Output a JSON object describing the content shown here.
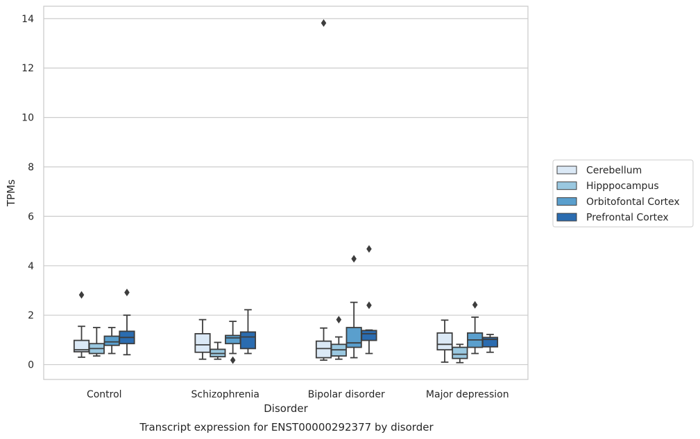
{
  "chart_data": {
    "type": "box",
    "title": "",
    "caption": "Transcript expression for ENST00000292377 by disorder",
    "xlabel": "Disorder",
    "ylabel": "TPMs",
    "ylim": [
      -0.6,
      14.5
    ],
    "yticks": [
      0,
      2,
      4,
      6,
      8,
      10,
      12,
      14
    ],
    "grid": "horizontal",
    "legend_position": "right",
    "categories": [
      "Control",
      "Schizophrenia",
      "Bipolar disorder",
      "Major depression"
    ],
    "series": [
      {
        "name": "Cerebellum",
        "color": "#dbe9f6",
        "boxes": [
          {
            "whisker_low": 0.3,
            "q1": 0.52,
            "median": 0.6,
            "q3": 0.98,
            "whisker_high": 1.55,
            "outliers": [
              2.82
            ]
          },
          {
            "whisker_low": 0.22,
            "q1": 0.5,
            "median": 0.8,
            "q3": 1.25,
            "whisker_high": 1.82,
            "outliers": []
          },
          {
            "whisker_low": 0.18,
            "q1": 0.28,
            "median": 0.65,
            "q3": 0.95,
            "whisker_high": 1.48,
            "outliers": [
              13.82
            ]
          },
          {
            "whisker_low": 0.1,
            "q1": 0.6,
            "median": 0.82,
            "q3": 1.28,
            "whisker_high": 1.8,
            "outliers": []
          }
        ]
      },
      {
        "name": "Hipppocampus",
        "color": "#9ac8e0",
        "boxes": [
          {
            "whisker_low": 0.35,
            "q1": 0.45,
            "median": 0.65,
            "q3": 0.85,
            "whisker_high": 1.5,
            "outliers": []
          },
          {
            "whisker_low": 0.22,
            "q1": 0.32,
            "median": 0.45,
            "q3": 0.62,
            "whisker_high": 0.9,
            "outliers": []
          },
          {
            "whisker_low": 0.22,
            "q1": 0.35,
            "median": 0.6,
            "q3": 0.82,
            "whisker_high": 1.12,
            "outliers": [
              1.82
            ]
          },
          {
            "whisker_low": 0.08,
            "q1": 0.25,
            "median": 0.42,
            "q3": 0.7,
            "whisker_high": 0.82,
            "outliers": []
          }
        ]
      },
      {
        "name": "Orbitofontal Cortex",
        "color": "#5a9fcd",
        "boxes": [
          {
            "whisker_low": 0.45,
            "q1": 0.78,
            "median": 0.92,
            "q3": 1.15,
            "whisker_high": 1.5,
            "outliers": []
          },
          {
            "whisker_low": 0.45,
            "q1": 0.85,
            "median": 1.08,
            "q3": 1.18,
            "whisker_high": 1.75,
            "outliers": [
              0.18
            ]
          },
          {
            "whisker_low": 0.28,
            "q1": 0.7,
            "median": 0.88,
            "q3": 1.5,
            "whisker_high": 2.52,
            "outliers": [
              4.28
            ]
          },
          {
            "whisker_low": 0.45,
            "q1": 0.7,
            "median": 1.0,
            "q3": 1.28,
            "whisker_high": 1.92,
            "outliers": [
              2.42
            ]
          }
        ]
      },
      {
        "name": "Prefrontal Cortex",
        "color": "#2b6cb0",
        "boxes": [
          {
            "whisker_low": 0.4,
            "q1": 0.85,
            "median": 1.1,
            "q3": 1.35,
            "whisker_high": 2.0,
            "outliers": [
              2.92
            ]
          },
          {
            "whisker_low": 0.45,
            "q1": 0.65,
            "median": 1.12,
            "q3": 1.32,
            "whisker_high": 2.22,
            "outliers": []
          },
          {
            "whisker_low": 0.45,
            "q1": 0.98,
            "median": 1.25,
            "q3": 1.38,
            "whisker_high": 1.4,
            "outliers": [
              2.4,
              4.68
            ]
          },
          {
            "whisker_low": 0.5,
            "q1": 0.72,
            "median": 1.02,
            "q3": 1.1,
            "whisker_high": 1.22,
            "outliers": []
          }
        ]
      }
    ]
  }
}
